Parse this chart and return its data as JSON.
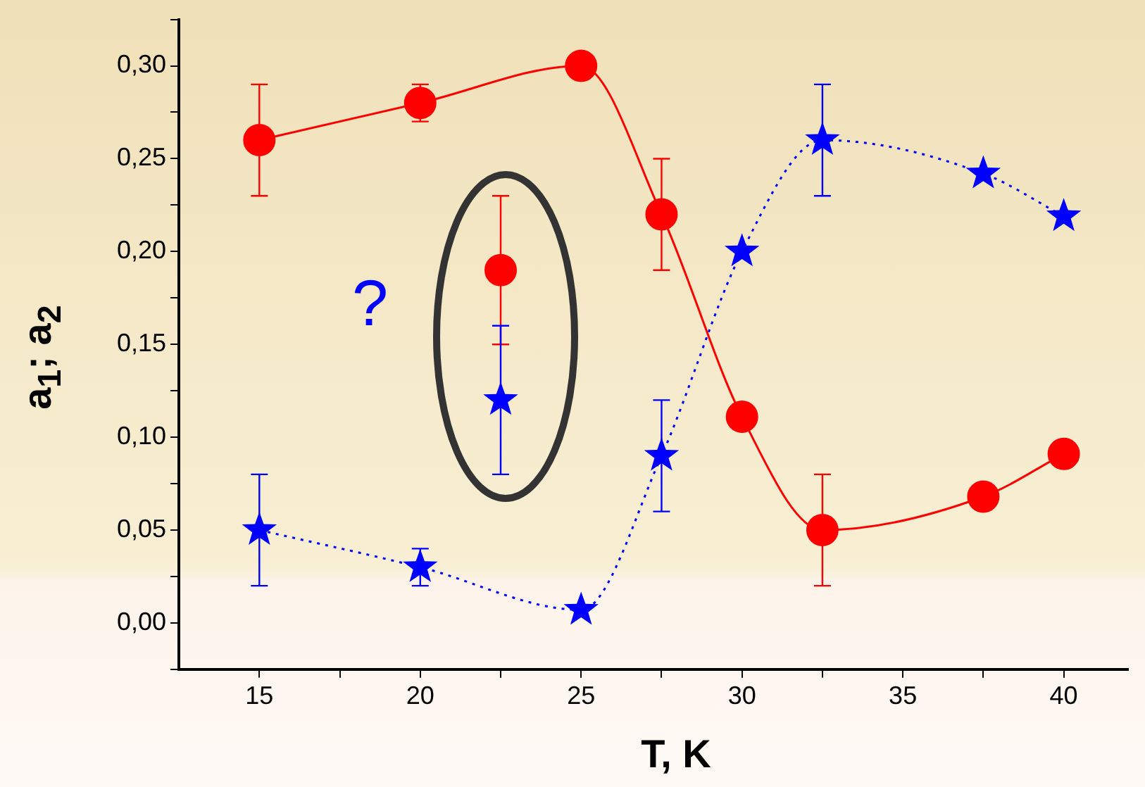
{
  "chart_data": {
    "type": "line",
    "xlabel": "T, K",
    "ylabel": "a$_{1}$; a$_{2}$",
    "annotations": [
      "?"
    ],
    "xlim": [
      12.5,
      42
    ],
    "xticks": [
      15,
      {
        "value": 17.5,
        "label": null
      },
      20,
      {
        "value": 22.5,
        "label": null
      },
      25,
      {
        "value": 27.5,
        "label": null
      },
      30,
      {
        "value": 32.5,
        "label": null
      },
      35,
      {
        "value": 37.5,
        "label": null
      },
      40
    ],
    "ylim": [
      -0.025,
      0.325
    ],
    "yticks": [
      {
        "value": -0.025,
        "label": null
      },
      {
        "value": 0,
        "label": "0,00"
      },
      {
        "value": 0.025,
        "label": null
      },
      {
        "value": 0.05,
        "label": "0,05"
      },
      {
        "value": 0.075,
        "label": null
      },
      {
        "value": 0.1,
        "label": "0,10"
      },
      {
        "value": 0.125,
        "label": null
      },
      {
        "value": 0.15,
        "label": "0,15"
      },
      {
        "value": 0.175,
        "label": null
      },
      {
        "value": 0.2,
        "label": "0,20"
      },
      {
        "value": 0.225,
        "label": null
      },
      {
        "value": 0.25,
        "label": "0,25"
      },
      {
        "value": 0.275,
        "label": null
      },
      {
        "value": 0.3,
        "label": "0,30"
      },
      {
        "value": 0.325,
        "label": null
      }
    ],
    "grid": false,
    "legend": false,
    "series": [
      {
        "color": "#ff0000",
        "marker": "circle",
        "line_style": "solid",
        "x": [
          15,
          20,
          25,
          27.5,
          30,
          32.5,
          37.5,
          40
        ],
        "values": [
          0.26,
          0.28,
          0.3,
          0.22,
          0.111,
          0.05,
          0.068,
          0.091
        ],
        "errors": [
          0.03,
          0.01,
          null,
          0.03,
          null,
          0.03,
          null,
          null
        ]
      },
      {
        "type": "scatter",
        "color": "#ff0000",
        "marker": "circle",
        "x": [
          22.5
        ],
        "values": [
          0.19
        ],
        "errors": [
          0.04
        ]
      },
      {
        "color": "#0000ff",
        "marker": "star",
        "line_style": "dotted",
        "x": [
          15,
          20,
          25,
          27.5,
          30,
          32.5,
          37.5,
          40
        ],
        "values": [
          0.05,
          0.03,
          0.007,
          0.09,
          0.2,
          0.26,
          0.242,
          0.219
        ],
        "errors": [
          0.03,
          0.01,
          null,
          0.03,
          null,
          0.03,
          null,
          null
        ]
      },
      {
        "type": "scatter",
        "color": "#0000ff",
        "marker": "star",
        "x": [
          22.5
        ],
        "values": [
          0.12
        ],
        "errors": [
          0.04
        ]
      }
    ]
  }
}
